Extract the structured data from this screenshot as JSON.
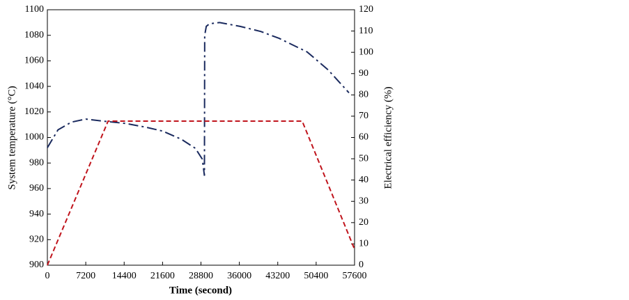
{
  "chart_data": {
    "type": "line",
    "xlabel": "Time (second)",
    "ylabel": "System temperature (°C)",
    "y2label": "Electrical efficiency (%)",
    "xlim": [
      0,
      57600
    ],
    "xticks": [
      0,
      7200,
      14400,
      21600,
      28800,
      36000,
      43200,
      50400,
      57600
    ],
    "ylim": [
      900,
      1100
    ],
    "yticks": [
      900,
      920,
      940,
      960,
      980,
      1000,
      1020,
      1040,
      1060,
      1080,
      1100
    ],
    "y2lim": [
      0,
      120
    ],
    "y2ticks": [
      0,
      10,
      20,
      30,
      40,
      50,
      60,
      70,
      80,
      90,
      100,
      110,
      120
    ],
    "series": [
      {
        "color": "#1a2a5e",
        "dash": "dashdot",
        "axis": "y",
        "x": [
          0,
          2000,
          4500,
          7200,
          10000,
          14660,
          18500,
          21600,
          25130,
          27750,
          29060,
          29450,
          29500,
          29800,
          30400,
          32300,
          36130,
          40000,
          43460,
          48700,
          52630,
          56550
        ],
        "values": [
          992,
          1006,
          1012,
          1014.4,
          1013,
          1011,
          1008,
          1005,
          998.6,
          991.5,
          983,
          970,
          1080,
          1087,
          1089,
          1090,
          1087,
          1083,
          1077.6,
          1067,
          1053,
          1035
        ]
      },
      {
        "color": "#c0141c",
        "dash": "dashed",
        "axis": "y2",
        "x": [
          0,
          11390,
          47780,
          57600
        ],
        "values": [
          0,
          67.7,
          67.7,
          7.5
        ]
      }
    ]
  }
}
